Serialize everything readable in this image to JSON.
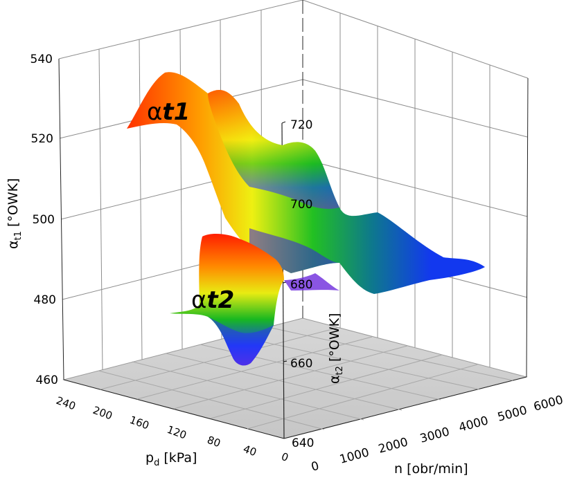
{
  "chart_data": {
    "type": "surface3d",
    "title": "",
    "axes": {
      "pd": {
        "label_main": "p",
        "label_sub": "d",
        "label_unit": " [kPa]",
        "ticks": [
          "240",
          "200",
          "160",
          "120",
          "80",
          "40",
          "0"
        ],
        "range": [
          0,
          250
        ]
      },
      "n": {
        "label": "n [obr/min]",
        "ticks": [
          "0",
          "1000",
          "2000",
          "3000",
          "4000",
          "5000",
          "6000"
        ],
        "range": [
          0,
          6000
        ]
      },
      "alpha_t1": {
        "label_main": "α",
        "label_sub": "t1",
        "label_unit": " [°OWK]",
        "ticks": [
          "540",
          "520",
          "500",
          "480",
          "460"
        ],
        "range": [
          460,
          540
        ]
      },
      "alpha_t2": {
        "label_main": "α",
        "label_sub": "t2",
        "label_unit": " [°OWK]",
        "ticks": [
          "720",
          "700",
          "680",
          "660",
          "640"
        ],
        "range": [
          640,
          720
        ]
      }
    },
    "surfaces": [
      {
        "label_sym": "α",
        "label_txt": "t1",
        "axis": "alpha_t1",
        "approx_range": [
          482,
          537
        ],
        "color_scale": [
          "#6d2bdc",
          "#1a3cff",
          "#10b410",
          "#f7ef10",
          "#ff9a00",
          "#ff1e00"
        ]
      },
      {
        "label_sym": "α",
        "label_txt": "t2",
        "axis": "alpha_t2",
        "approx_range": [
          668,
          702
        ],
        "color_scale": [
          "#6d2bdc",
          "#1a3cff",
          "#10b410",
          "#f7ef10",
          "#ff9a00",
          "#ff1e00"
        ]
      }
    ],
    "grid": true,
    "floor_color": "#cfcfcf"
  }
}
